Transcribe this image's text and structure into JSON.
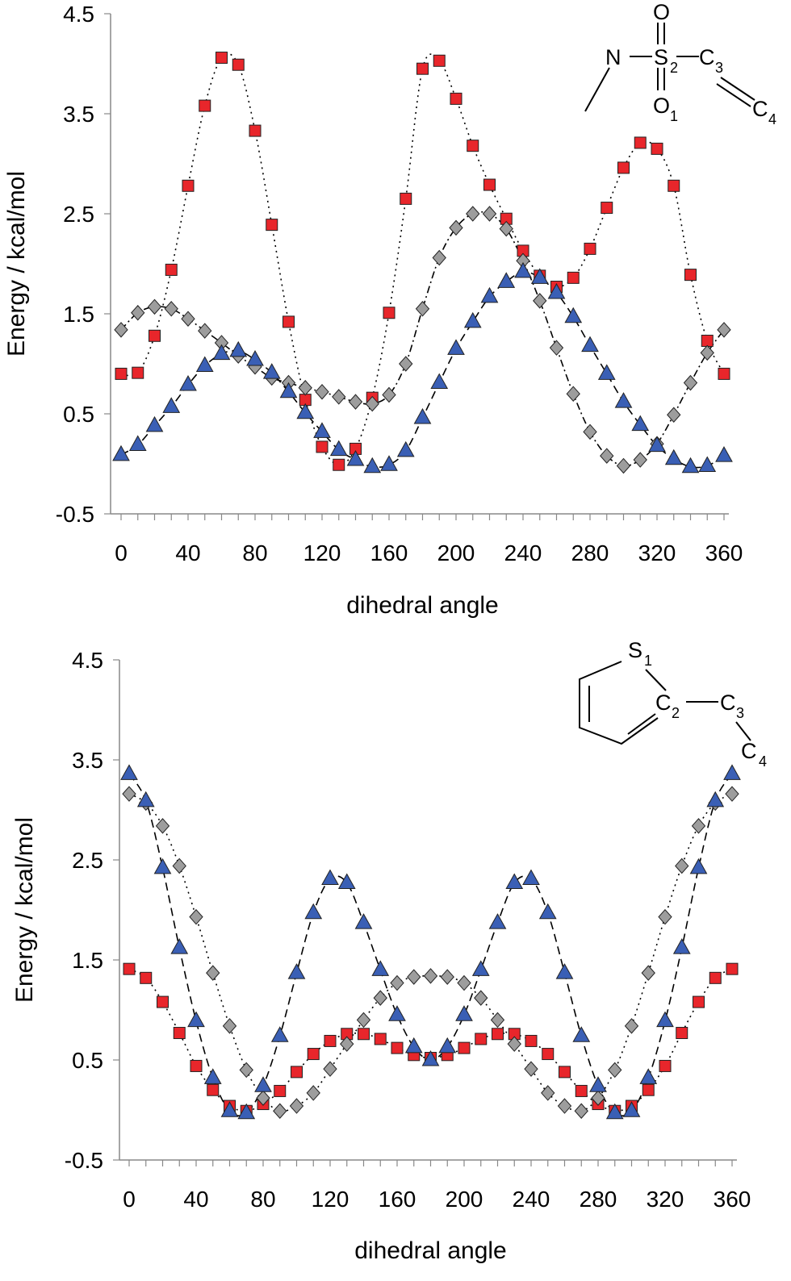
{
  "chart_data": [
    {
      "type": "scatter",
      "title": "",
      "xlabel": "dihedral angle",
      "ylabel": "Energy / kcal/mol",
      "xlim": [
        0,
        360
      ],
      "ylim": [
        -0.5,
        4.5
      ],
      "xticks": [
        0,
        40,
        80,
        120,
        160,
        200,
        240,
        280,
        320,
        360
      ],
      "xtick_labels": [
        "0",
        "40",
        "80",
        "120",
        "160",
        "200",
        "240",
        "280",
        "320",
        "360"
      ],
      "yticks": [
        -0.5,
        0.5,
        1.5,
        2.5,
        3.5,
        4.5
      ],
      "ytick_labels": [
        "-0.5",
        "0.5",
        "1.5",
        "2.5",
        "3.5",
        "4.5"
      ],
      "grid": false,
      "legend": "none",
      "structure": {
        "atoms": [
          "N",
          "S",
          "C",
          "C",
          "O",
          "O"
        ],
        "subscripts": [
          "2",
          "3",
          "4",
          "1"
        ]
      },
      "x": [
        0,
        10,
        20,
        30,
        40,
        50,
        60,
        70,
        80,
        90,
        100,
        110,
        120,
        130,
        140,
        150,
        160,
        170,
        180,
        190,
        200,
        210,
        220,
        230,
        240,
        250,
        260,
        270,
        280,
        290,
        300,
        310,
        320,
        330,
        340,
        350,
        360
      ],
      "series": [
        {
          "marker": "square",
          "color": "#e8262b",
          "line": "dotted",
          "values": [
            0.9,
            0.91,
            1.28,
            1.94,
            2.78,
            3.58,
            4.06,
            3.99,
            3.33,
            2.39,
            1.42,
            0.64,
            0.17,
            -0.01,
            0.15,
            0.66,
            1.51,
            2.65,
            3.95,
            4.03,
            3.65,
            3.18,
            2.79,
            2.45,
            2.13,
            1.88,
            1.77,
            1.86,
            2.15,
            2.56,
            2.96,
            3.21,
            3.15,
            2.78,
            1.89,
            1.23,
            0.9
          ]
        },
        {
          "marker": "diamond",
          "color": "#9d9d9d",
          "line": "dash-dot",
          "values": [
            1.34,
            1.51,
            1.57,
            1.55,
            1.45,
            1.33,
            1.21,
            1.08,
            0.97,
            0.86,
            0.81,
            0.76,
            0.72,
            0.67,
            0.62,
            0.6,
            0.69,
            1.0,
            1.55,
            2.06,
            2.36,
            2.5,
            2.5,
            2.35,
            2.03,
            1.63,
            1.16,
            0.7,
            0.32,
            0.08,
            -0.02,
            0.04,
            0.2,
            0.49,
            0.81,
            1.11,
            1.34
          ]
        },
        {
          "marker": "triangle",
          "color": "#3a5fb5",
          "line": "dashed",
          "values": [
            0.09,
            0.19,
            0.38,
            0.57,
            0.79,
            0.98,
            1.1,
            1.13,
            1.04,
            0.91,
            0.72,
            0.51,
            0.32,
            0.14,
            0.04,
            -0.03,
            -0.01,
            0.13,
            0.46,
            0.81,
            1.15,
            1.42,
            1.67,
            1.82,
            1.92,
            1.86,
            1.71,
            1.47,
            1.18,
            0.9,
            0.62,
            0.39,
            0.18,
            0.05,
            -0.03,
            -0.02,
            0.08
          ]
        }
      ]
    },
    {
      "type": "scatter",
      "title": "",
      "xlabel": "dihedral angle",
      "ylabel": "Energy / kcal/mol",
      "xlim": [
        0,
        360
      ],
      "ylim": [
        -0.5,
        4.5
      ],
      "xticks": [
        0,
        40,
        80,
        120,
        160,
        200,
        240,
        280,
        320,
        360
      ],
      "xtick_labels": [
        "0",
        "40",
        "80",
        "120",
        "160",
        "200",
        "240",
        "280",
        "320",
        "360"
      ],
      "yticks": [
        -0.5,
        0.5,
        1.5,
        2.5,
        3.5,
        4.5
      ],
      "ytick_labels": [
        "-0.5",
        "0.5",
        "1.5",
        "2.5",
        "3.5",
        "4.5"
      ],
      "grid": false,
      "legend": "none",
      "structure": {
        "atoms": [
          "S",
          "C",
          "C",
          "C"
        ],
        "subscripts": [
          "1",
          "2",
          "3",
          "4"
        ]
      },
      "x": [
        0,
        10,
        20,
        30,
        40,
        50,
        60,
        70,
        80,
        90,
        100,
        110,
        120,
        130,
        140,
        150,
        160,
        170,
        180,
        190,
        200,
        210,
        220,
        230,
        240,
        250,
        260,
        270,
        280,
        290,
        300,
        310,
        320,
        330,
        340,
        350,
        360
      ],
      "series": [
        {
          "marker": "square",
          "color": "#e8262b",
          "line": "dotted",
          "values": [
            1.41,
            1.32,
            1.08,
            0.77,
            0.44,
            0.2,
            0.04,
            -0.01,
            0.06,
            0.19,
            0.38,
            0.56,
            0.69,
            0.76,
            0.76,
            0.71,
            0.62,
            0.55,
            0.52,
            0.55,
            0.62,
            0.71,
            0.76,
            0.76,
            0.69,
            0.56,
            0.38,
            0.19,
            0.06,
            -0.01,
            0.04,
            0.2,
            0.44,
            0.77,
            1.08,
            1.32,
            1.41
          ]
        },
        {
          "marker": "diamond",
          "color": "#9d9d9d",
          "line": "dotted",
          "values": [
            3.16,
            3.07,
            2.84,
            2.44,
            1.93,
            1.37,
            0.84,
            0.4,
            0.12,
            -0.01,
            0.04,
            0.17,
            0.41,
            0.66,
            0.9,
            1.12,
            1.27,
            1.33,
            1.34,
            1.33,
            1.27,
            1.12,
            0.9,
            0.66,
            0.41,
            0.17,
            0.04,
            -0.01,
            0.12,
            0.4,
            0.84,
            1.37,
            1.93,
            2.44,
            2.84,
            3.07,
            3.16
          ]
        },
        {
          "marker": "triangle",
          "color": "#3a5fb5",
          "line": "dashed",
          "values": [
            3.36,
            3.09,
            2.42,
            1.62,
            0.89,
            0.32,
            -0.01,
            -0.03,
            0.24,
            0.74,
            1.37,
            1.97,
            2.31,
            2.27,
            1.87,
            1.4,
            0.95,
            0.63,
            0.5,
            0.63,
            0.95,
            1.4,
            1.87,
            2.27,
            2.31,
            1.97,
            1.37,
            0.74,
            0.24,
            -0.03,
            -0.01,
            0.32,
            0.89,
            1.62,
            2.42,
            3.09,
            3.36
          ]
        }
      ]
    }
  ]
}
